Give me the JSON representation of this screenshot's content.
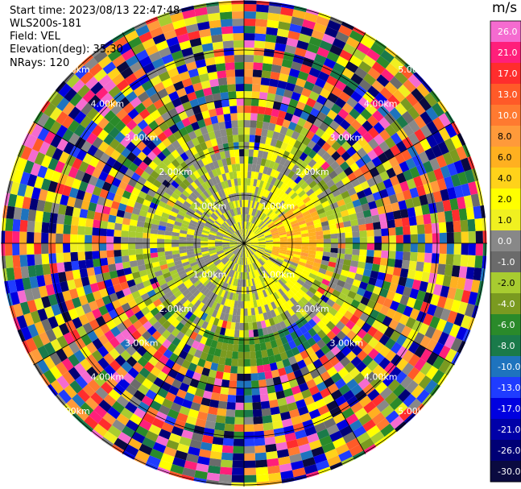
{
  "header": {
    "start_time": "Start time: 2023/08/13 22:47:48",
    "instrument": "WLS200s-181",
    "field": "Field: VEL",
    "elevation": "Elevation(deg): 35.30",
    "nrays": "NRays: 120"
  },
  "colorbar": {
    "unit": "m/s",
    "ticks": [
      "26.0",
      "21.0",
      "17.0",
      "13.0",
      "10.0",
      "8.0",
      "6.0",
      "4.0",
      "2.0",
      "1.0",
      "0.0",
      "-1.0",
      "-2.0",
      "-4.0",
      "-6.0",
      "-8.0",
      "-10.0",
      "-13.0",
      "-17.0",
      "-21.0",
      "-26.0",
      "-30.0"
    ],
    "colors": [
      "#f56bd0",
      "#ff1f7a",
      "#ff2d2d",
      "#ff5a28",
      "#ff7a30",
      "#ff9a3a",
      "#ffb020",
      "#ffd21a",
      "#ffff00",
      "#f0f020",
      "#888888",
      "#6b6b6b",
      "#a8cc30",
      "#7a9a20",
      "#2a8a2a",
      "#1a7a4a",
      "#1e73be",
      "#1f3cff",
      "#0000e0",
      "#0000a8",
      "#000075",
      "#0a0a40"
    ]
  },
  "chart_data": {
    "type": "heatmap",
    "projection": "polar (PPI)",
    "field": "VEL",
    "units": "m/s",
    "color_range": [
      -30,
      26
    ],
    "nrays": 120,
    "range_ring_labels": [
      "1.00km",
      "2.00km",
      "3.00km",
      "4.00km",
      "5.00km"
    ],
    "range_ring_km": [
      1,
      2,
      3,
      4,
      5
    ],
    "approx_max_range_km": 6.5,
    "pattern": {
      "inner_0_to_1_5km": "mostly 0 to +2 m/s (yellow/grey/olive), orange +4 to +6 m/s patch to the east",
      "mid_1_5_to_2_5km": "mixed grey / olive -2 m/s / yellow, green -6 m/s patch to the south",
      "outer_beyond_3km": "noise across full color range"
    }
  }
}
